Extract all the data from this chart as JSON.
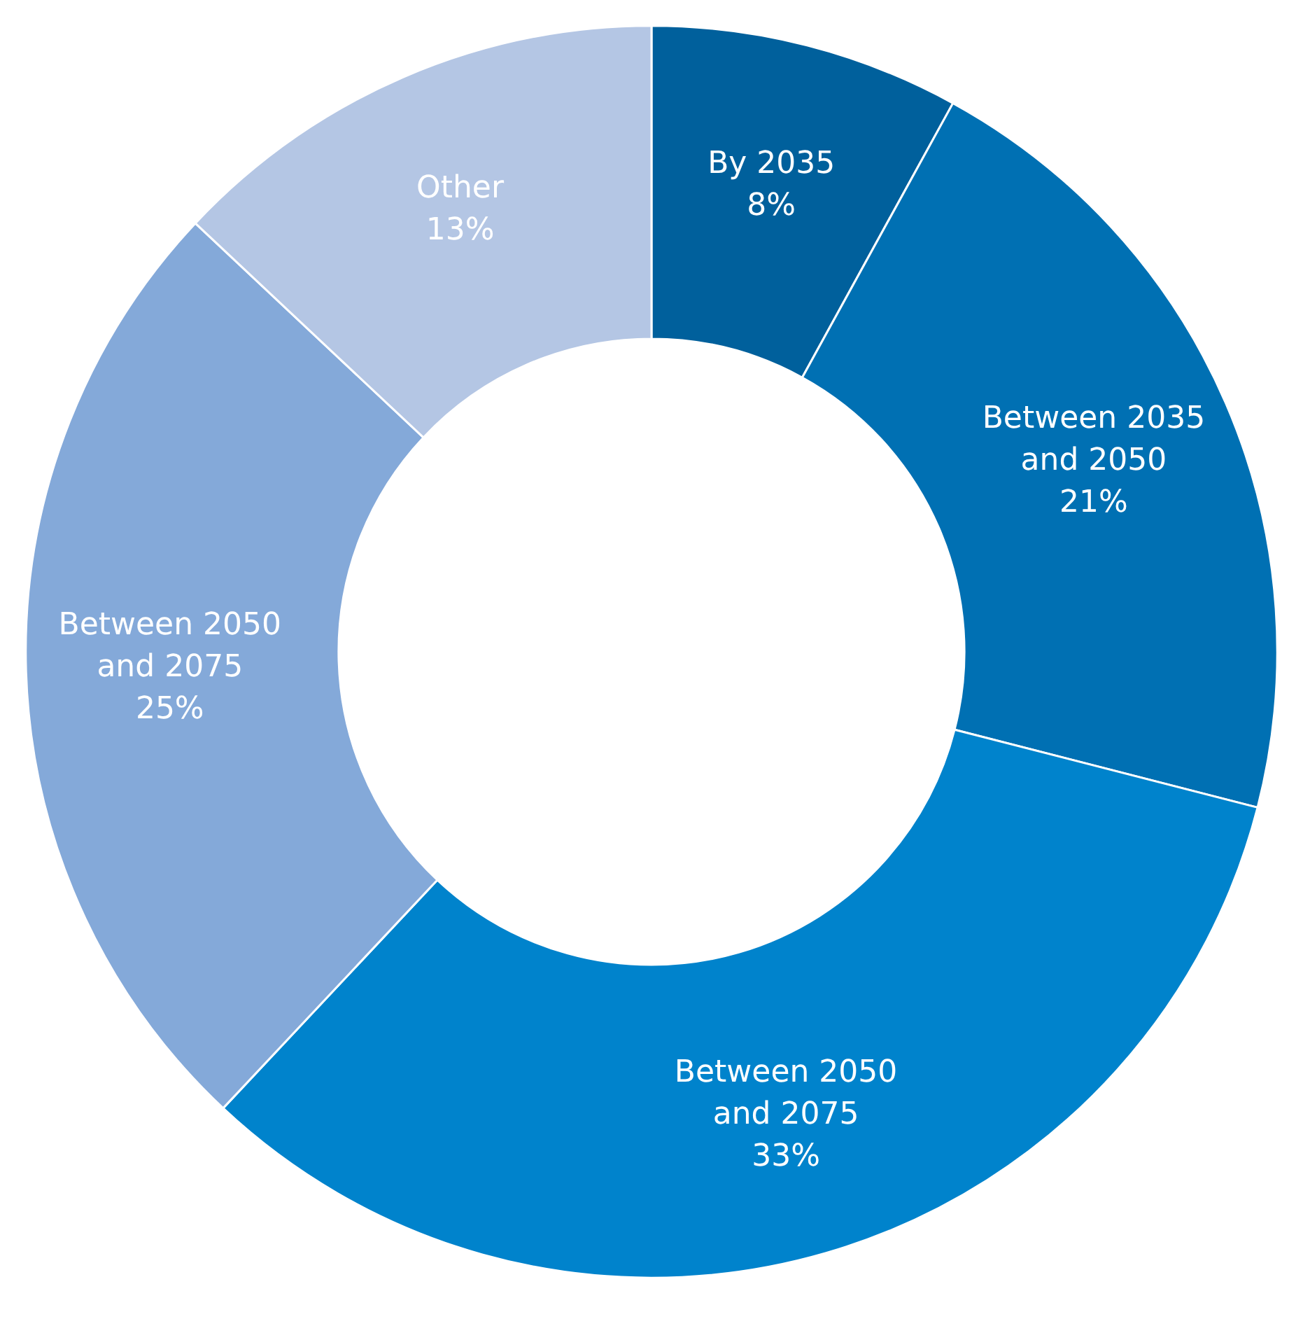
{
  "chart_data": {
    "type": "donut",
    "categories": [
      "By 2035",
      "Between 2035 and 2050",
      "Between 2050 and 2075",
      "Between 2050 and 2075",
      "Other"
    ],
    "values": [
      8,
      21,
      33,
      25,
      13
    ],
    "value_labels": [
      "8%",
      "21%",
      "33%",
      "25%",
      "13%"
    ],
    "colors": [
      "#00609c",
      "#0070b3",
      "#0083cc",
      "#84a9d9",
      "#b4c6e4"
    ]
  }
}
